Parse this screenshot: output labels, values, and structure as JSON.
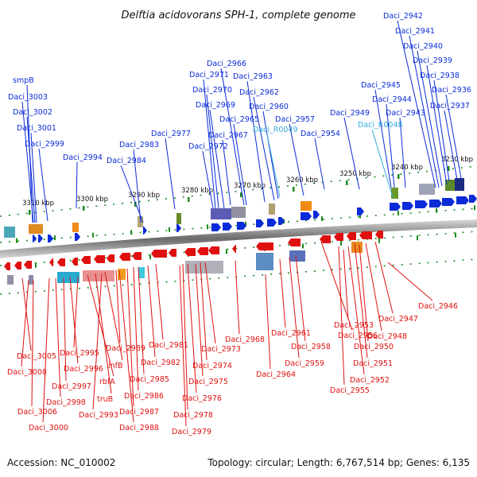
{
  "title": "Delftia acidovorans SPH-1, complete genome",
  "accession": "Accession: NC_010002",
  "topology": "Topology: circular; Length: 6,767,514 bp; Genes: 6,135",
  "colors": {
    "forward": "#0a2bd8",
    "reverse": "#e01010",
    "rna": "#33aadd",
    "backbone": "#777777",
    "dots": "#1f8a1f"
  },
  "scale_labels": [
    "3310 kbp",
    "3300 kbp",
    "3290 kbp",
    "3280 kbp",
    "3270 kbp",
    "3260 kbp",
    "3250 kbp",
    "3240 kbp",
    "3230 kbp"
  ],
  "top_labels": [
    {
      "text": "smpB",
      "color": "blue"
    },
    {
      "text": "Daci_3003",
      "color": "blue"
    },
    {
      "text": "Daci_3002",
      "color": "blue"
    },
    {
      "text": "Daci_3001",
      "color": "blue"
    },
    {
      "text": "Daci_2999",
      "color": "blue"
    },
    {
      "text": "Daci_2994",
      "color": "blue"
    },
    {
      "text": "Daci_2984",
      "color": "blue"
    },
    {
      "text": "Daci_2983",
      "color": "blue"
    },
    {
      "text": "Daci_2977",
      "color": "blue"
    },
    {
      "text": "Daci_2972",
      "color": "blue"
    },
    {
      "text": "Daci_2971",
      "color": "blue"
    },
    {
      "text": "Daci_2970",
      "color": "blue"
    },
    {
      "text": "Daci_2969",
      "color": "blue"
    },
    {
      "text": "Daci_2967",
      "color": "blue"
    },
    {
      "text": "Daci_2966",
      "color": "blue"
    },
    {
      "text": "Daci_2965",
      "color": "blue"
    },
    {
      "text": "Daci_2963",
      "color": "blue"
    },
    {
      "text": "Daci_2962",
      "color": "blue"
    },
    {
      "text": "Daci_2960",
      "color": "blue"
    },
    {
      "text": "Daci_R0049",
      "color": "cyan"
    },
    {
      "text": "Daci_2957",
      "color": "blue"
    },
    {
      "text": "Daci_2954",
      "color": "blue"
    },
    {
      "text": "Daci_2949",
      "color": "blue"
    },
    {
      "text": "Daci_R0048",
      "color": "cyan"
    },
    {
      "text": "Daci_2945",
      "color": "blue"
    },
    {
      "text": "Daci_2944",
      "color": "blue"
    },
    {
      "text": "Daci_2943",
      "color": "blue"
    },
    {
      "text": "Daci_2942",
      "color": "blue"
    },
    {
      "text": "Daci_2941",
      "color": "blue"
    },
    {
      "text": "Daci_2940",
      "color": "blue"
    },
    {
      "text": "Daci_2939",
      "color": "blue"
    },
    {
      "text": "Daci_2938",
      "color": "blue"
    },
    {
      "text": "Daci_2937",
      "color": "blue"
    },
    {
      "text": "Daci_2936",
      "color": "blue"
    }
  ],
  "bottom_labels": [
    "Daci_3005",
    "Daci_3008",
    "Daci_3006",
    "Daci_3000",
    "Daci_2998",
    "Daci_2997",
    "Daci_2996",
    "Daci_2995",
    "rbfA",
    "truB",
    "Daci_2993",
    "infB",
    "Daci_2989",
    "Daci_2988",
    "Daci_2987",
    "Daci_2986",
    "Daci_2985",
    "Daci_2982",
    "Daci_2981",
    "Daci_2979",
    "Daci_2978",
    "Daci_2976",
    "Daci_2975",
    "Daci_2974",
    "Daci_2973",
    "Daci_2968",
    "Daci_2964",
    "Daci_2961",
    "Daci_2959",
    "Daci_2958",
    "Daci_2956",
    "Daci_2955",
    "Daci_2953",
    "Daci_2952",
    "Daci_2951",
    "Daci_2950",
    "Daci_2948",
    "Daci_2947",
    "Daci_2946"
  ]
}
